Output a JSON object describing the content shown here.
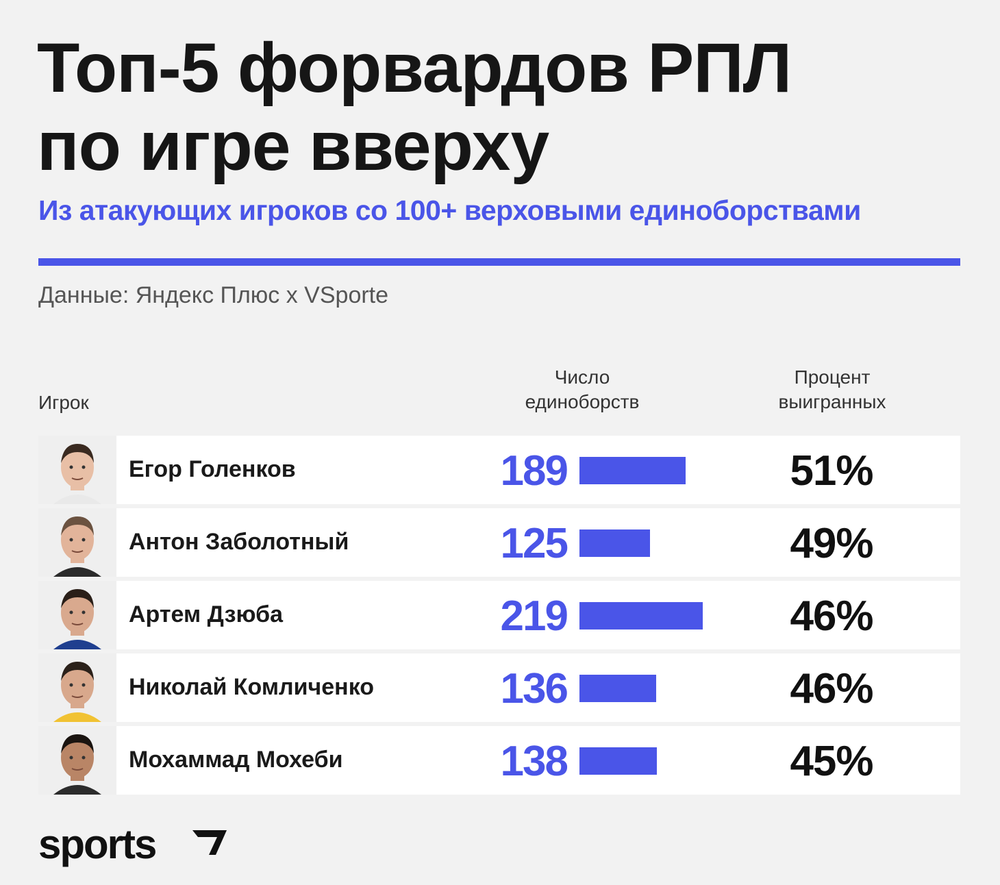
{
  "title_lines": [
    "Топ-5 форвардов РПЛ",
    "по игре вверху"
  ],
  "subtitle": "Из атакующих игроков со 100+ верховыми единоборствами",
  "source": "Данные: Яндекс Плюс x VSporte",
  "colors": {
    "accent": "#4a55e8",
    "background": "#f2f2f2",
    "row": "#ffffff"
  },
  "chart_data": {
    "type": "table",
    "columns": [
      "Игрок",
      "Число единоборств",
      "Процент выигранных"
    ],
    "header": {
      "player": "Игрок",
      "count_line1": "Число",
      "count_line2": "единоборств",
      "pct_line1": "Процент",
      "pct_line2": "выигранных"
    },
    "rows": [
      {
        "player": "Егор Голенков",
        "duels": 189,
        "duels_label": "189",
        "win_pct": "51%"
      },
      {
        "player": "Антон Заболотный",
        "duels": 125,
        "duels_label": "125",
        "win_pct": "49%"
      },
      {
        "player": "Артем Дзюба",
        "duels": 219,
        "duels_label": "219",
        "win_pct": "46%"
      },
      {
        "player": "Николай Комличенко",
        "duels": 136,
        "duels_label": "136",
        "win_pct": "46%"
      },
      {
        "player": "Мохаммад Мохеби",
        "duels": 138,
        "duels_label": "138",
        "win_pct": "45%"
      }
    ],
    "bar_max": 219
  },
  "brand": {
    "logo_text": "sports"
  }
}
